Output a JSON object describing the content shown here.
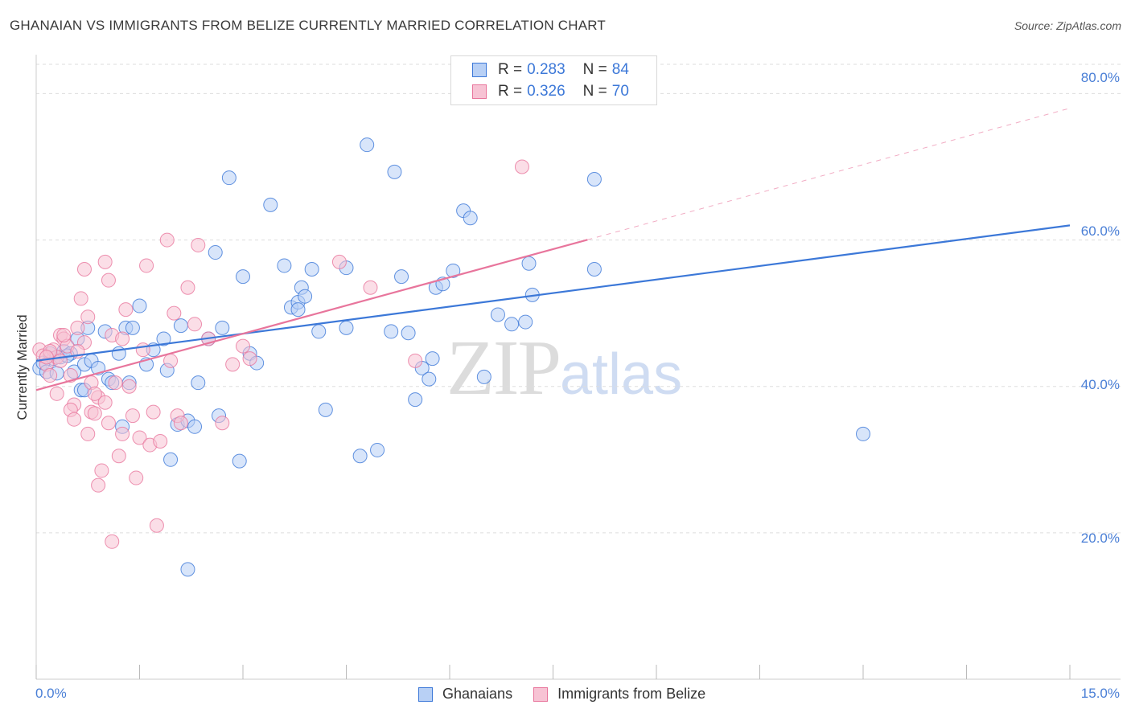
{
  "header": {
    "title": "GHANAIAN VS IMMIGRANTS FROM BELIZE CURRENTLY MARRIED CORRELATION CHART",
    "source": "Source: ZipAtlas.com"
  },
  "watermark": {
    "zip": "ZIP",
    "atlas": "atlas"
  },
  "colors": {
    "blue": "#3c78d8",
    "blue_fill": "#b8d0f5",
    "pink": "#e8759c",
    "pink_fill": "#f7c3d4",
    "grid": "#dddddd",
    "tick_text": "#4a7fd6"
  },
  "legend": {
    "rows": [
      {
        "r_label": "R =",
        "r_value": "0.283",
        "n_label": "N =",
        "n_value": "84"
      },
      {
        "r_label": "R =",
        "r_value": "0.326",
        "n_label": "N =",
        "n_value": "70"
      }
    ]
  },
  "bottom_legend": {
    "series1": "Ghanaians",
    "series2": "Immigrants from Belize"
  },
  "chart_data": {
    "type": "scatter",
    "title": "GHANAIAN VS IMMIGRANTS FROM BELIZE CURRENTLY MARRIED CORRELATION CHART",
    "xlabel": "",
    "ylabel": "Currently Married",
    "xlim": [
      0,
      15
    ],
    "ylim": [
      0,
      84
    ],
    "x_tick_labels": [
      "0.0%",
      "15.0%"
    ],
    "y_ticks": [
      20,
      40,
      60,
      80
    ],
    "y_tick_labels": [
      "20.0%",
      "40.0%",
      "60.0%",
      "80.0%"
    ],
    "grid": true,
    "legend_position": "top-center",
    "series": [
      {
        "name": "Ghanaians",
        "color": "#3c78d8",
        "r": 0.283,
        "n": 84,
        "trend": {
          "x0": 0,
          "y0": 43.5,
          "x1": 15,
          "y1": 62.0,
          "solid_to": 15
        },
        "points": [
          [
            0.05,
            42.5
          ],
          [
            0.1,
            43.2
          ],
          [
            0.15,
            42.0
          ],
          [
            0.2,
            44.5
          ],
          [
            0.25,
            43.8
          ],
          [
            0.3,
            41.8
          ],
          [
            0.35,
            44.0
          ],
          [
            0.4,
            44.8
          ],
          [
            0.5,
            44.5
          ],
          [
            0.55,
            42.0
          ],
          [
            0.6,
            46.5
          ],
          [
            0.65,
            39.5
          ],
          [
            0.7,
            43.0
          ],
          [
            0.75,
            48.0
          ],
          [
            0.8,
            43.5
          ],
          [
            1.0,
            47.5
          ],
          [
            1.05,
            41.0
          ],
          [
            1.1,
            40.5
          ],
          [
            1.2,
            44.5
          ],
          [
            1.3,
            48.0
          ],
          [
            1.35,
            40.5
          ],
          [
            1.4,
            48.0
          ],
          [
            1.5,
            51.0
          ],
          [
            1.6,
            43.0
          ],
          [
            1.7,
            45.0
          ],
          [
            1.85,
            46.5
          ],
          [
            1.9,
            42.2
          ],
          [
            1.95,
            30.0
          ],
          [
            2.05,
            34.8
          ],
          [
            2.1,
            48.3
          ],
          [
            2.2,
            35.3
          ],
          [
            2.3,
            34.5
          ],
          [
            2.35,
            40.5
          ],
          [
            2.5,
            46.5
          ],
          [
            2.6,
            58.3
          ],
          [
            2.65,
            36.0
          ],
          [
            2.7,
            48.0
          ],
          [
            2.8,
            68.5
          ],
          [
            2.95,
            29.8
          ],
          [
            3.0,
            55.0
          ],
          [
            3.1,
            44.5
          ],
          [
            3.2,
            43.2
          ],
          [
            3.4,
            64.8
          ],
          [
            3.6,
            56.5
          ],
          [
            3.7,
            50.8
          ],
          [
            3.8,
            51.5
          ],
          [
            3.85,
            53.5
          ],
          [
            3.9,
            52.3
          ],
          [
            4.0,
            56.0
          ],
          [
            4.1,
            47.5
          ],
          [
            4.2,
            36.8
          ],
          [
            4.5,
            48.0
          ],
          [
            4.7,
            30.5
          ],
          [
            4.8,
            73.0
          ],
          [
            4.95,
            31.3
          ],
          [
            5.15,
            47.5
          ],
          [
            5.2,
            69.3
          ],
          [
            5.3,
            55.0
          ],
          [
            5.4,
            47.3
          ],
          [
            5.5,
            38.2
          ],
          [
            5.6,
            42.5
          ],
          [
            5.7,
            41.0
          ],
          [
            5.75,
            43.8
          ],
          [
            5.8,
            53.5
          ],
          [
            5.9,
            54.0
          ],
          [
            6.05,
            55.8
          ],
          [
            6.2,
            64.0
          ],
          [
            6.3,
            63.0
          ],
          [
            6.5,
            41.3
          ],
          [
            6.7,
            49.8
          ],
          [
            6.9,
            48.5
          ],
          [
            7.1,
            48.8
          ],
          [
            7.15,
            56.8
          ],
          [
            7.2,
            52.5
          ],
          [
            8.1,
            68.3
          ],
          [
            8.1,
            56.0
          ],
          [
            2.2,
            15.0
          ],
          [
            12.0,
            33.5
          ],
          [
            0.45,
            44.2
          ],
          [
            0.7,
            39.5
          ],
          [
            1.25,
            34.5
          ],
          [
            3.8,
            50.5
          ],
          [
            4.5,
            56.2
          ],
          [
            0.9,
            42.5
          ]
        ]
      },
      {
        "name": "Immigrants from Belize",
        "color": "#e8759c",
        "r": 0.326,
        "n": 70,
        "trend": {
          "x0": 0,
          "y0": 39.5,
          "x1": 15,
          "y1": 78.0,
          "solid_to": 8.0
        },
        "points": [
          [
            0.05,
            45.0
          ],
          [
            0.1,
            44.2
          ],
          [
            0.15,
            43.0
          ],
          [
            0.2,
            41.5
          ],
          [
            0.25,
            45.0
          ],
          [
            0.3,
            44.0
          ],
          [
            0.35,
            47.0
          ],
          [
            0.4,
            46.5
          ],
          [
            0.45,
            45.5
          ],
          [
            0.5,
            41.5
          ],
          [
            0.55,
            37.5
          ],
          [
            0.6,
            48.0
          ],
          [
            0.65,
            52.0
          ],
          [
            0.7,
            56.0
          ],
          [
            0.75,
            33.5
          ],
          [
            0.8,
            36.5
          ],
          [
            0.85,
            36.3
          ],
          [
            0.9,
            38.5
          ],
          [
            0.95,
            28.5
          ],
          [
            1.0,
            57.0
          ],
          [
            1.05,
            54.5
          ],
          [
            1.1,
            47.0
          ],
          [
            1.15,
            40.5
          ],
          [
            1.2,
            30.5
          ],
          [
            1.25,
            33.5
          ],
          [
            1.3,
            50.5
          ],
          [
            1.35,
            40.0
          ],
          [
            1.4,
            36.0
          ],
          [
            1.45,
            27.5
          ],
          [
            1.5,
            33.0
          ],
          [
            1.55,
            45.0
          ],
          [
            1.6,
            56.5
          ],
          [
            1.65,
            32.0
          ],
          [
            1.7,
            36.5
          ],
          [
            1.75,
            21.0
          ],
          [
            1.8,
            32.5
          ],
          [
            1.9,
            60.0
          ],
          [
            1.95,
            43.5
          ],
          [
            2.05,
            36.0
          ],
          [
            2.1,
            35.0
          ],
          [
            2.2,
            53.5
          ],
          [
            2.3,
            48.5
          ],
          [
            2.35,
            59.3
          ],
          [
            2.5,
            46.5
          ],
          [
            2.7,
            35.0
          ],
          [
            2.85,
            43.0
          ],
          [
            3.0,
            45.5
          ],
          [
            3.1,
            43.8
          ],
          [
            4.4,
            57.0
          ],
          [
            4.85,
            53.5
          ],
          [
            5.5,
            43.5
          ],
          [
            7.05,
            70.0
          ],
          [
            0.2,
            44.8
          ],
          [
            0.3,
            39.0
          ],
          [
            0.5,
            36.8
          ],
          [
            0.55,
            35.5
          ],
          [
            0.7,
            46.0
          ],
          [
            0.8,
            40.5
          ],
          [
            0.9,
            26.5
          ],
          [
            1.1,
            18.8
          ],
          [
            1.25,
            46.5
          ],
          [
            0.4,
            47.0
          ],
          [
            0.6,
            44.8
          ],
          [
            0.75,
            49.5
          ],
          [
            1.0,
            37.8
          ],
          [
            0.35,
            43.5
          ],
          [
            0.15,
            44.0
          ],
          [
            0.85,
            39.0
          ],
          [
            1.05,
            35.0
          ],
          [
            2.0,
            50.0
          ]
        ]
      }
    ]
  }
}
